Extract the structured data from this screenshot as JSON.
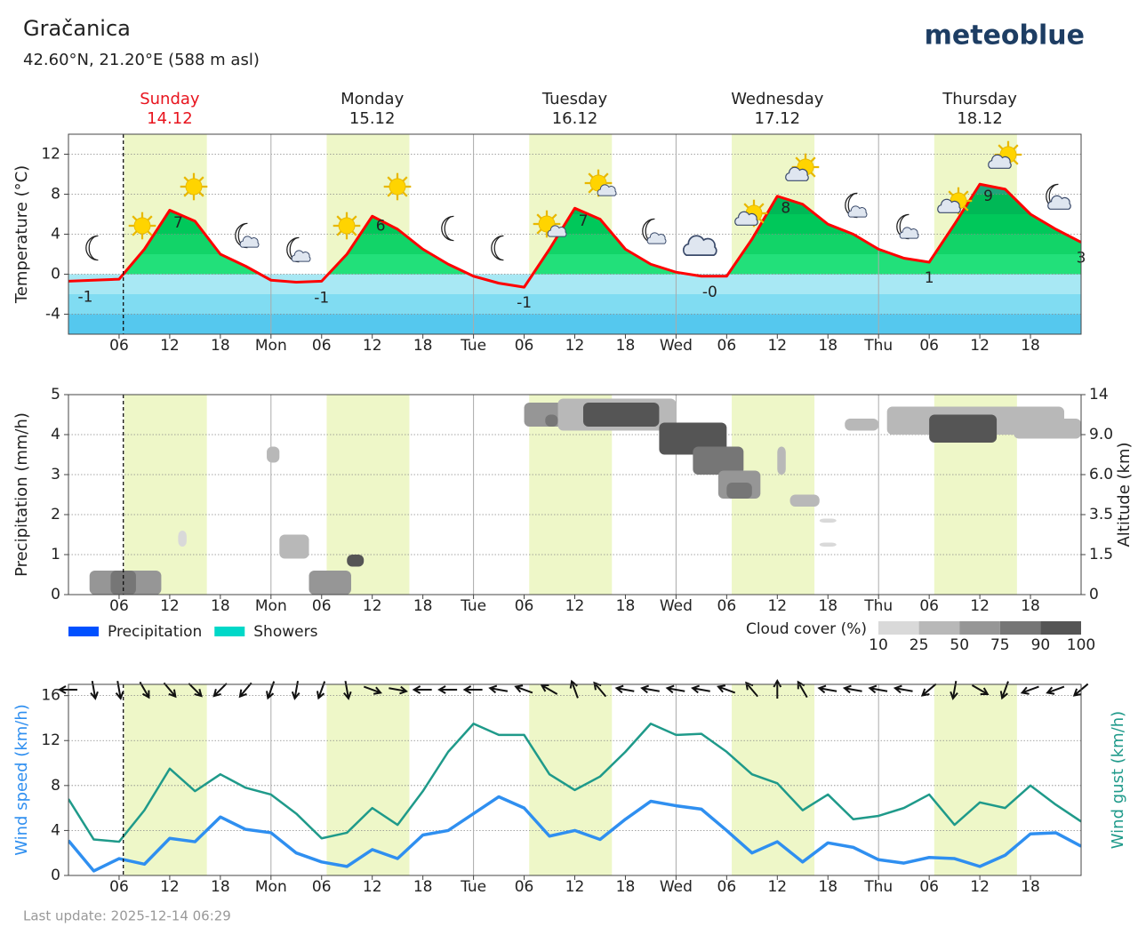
{
  "title": "Gračanica",
  "subtitle": "42.60°N, 21.20°E (588 m asl)",
  "brand": "meteoblue",
  "footer": "Last update: 2025-12-14 06:29",
  "days": [
    {
      "name": "Sunday",
      "date": "14.12",
      "color": "#e8141e"
    },
    {
      "name": "Monday",
      "date": "15.12",
      "color": "#222222"
    },
    {
      "name": "Tuesday",
      "date": "16.12",
      "color": "#222222"
    },
    {
      "name": "Wednesday",
      "date": "17.12",
      "color": "#222222"
    },
    {
      "name": "Thursday",
      "date": "18.12",
      "color": "#222222"
    }
  ],
  "time": {
    "xlim": [
      0,
      120
    ],
    "xticks": [
      {
        "value": 6,
        "label": "06"
      },
      {
        "value": 12,
        "label": "12"
      },
      {
        "value": 18,
        "label": "18"
      },
      {
        "value": 24,
        "label": "Mon"
      },
      {
        "value": 30,
        "label": "06"
      },
      {
        "value": 36,
        "label": "12"
      },
      {
        "value": 42,
        "label": "18"
      },
      {
        "value": 48,
        "label": "Tue"
      },
      {
        "value": 54,
        "label": "06"
      },
      {
        "value": 60,
        "label": "12"
      },
      {
        "value": 66,
        "label": "18"
      },
      {
        "value": 72,
        "label": "Wed"
      },
      {
        "value": 78,
        "label": "06"
      },
      {
        "value": 84,
        "label": "12"
      },
      {
        "value": 90,
        "label": "18"
      },
      {
        "value": 96,
        "label": "Thu"
      },
      {
        "value": 102,
        "label": "06"
      },
      {
        "value": 108,
        "label": "12"
      },
      {
        "value": 114,
        "label": "18"
      }
    ],
    "now": 6.5,
    "daylight": [
      [
        6.6,
        16.4
      ],
      [
        30.6,
        40.4
      ],
      [
        54.6,
        64.4
      ],
      [
        78.6,
        88.4
      ],
      [
        102.6,
        112.4
      ]
    ],
    "daylight_color": "#eef7c8"
  },
  "chart_data": [
    {
      "type": "line",
      "ylabel": "Temperature (°C)",
      "ylim": [
        -6,
        14
      ],
      "yticks": [
        -4,
        0,
        4,
        8,
        12
      ],
      "grid": true,
      "x": [
        0,
        3,
        6,
        9,
        12,
        15,
        18,
        21,
        24,
        27,
        30,
        33,
        36,
        39,
        42,
        45,
        48,
        51,
        54,
        57,
        60,
        63,
        66,
        69,
        72,
        75,
        78,
        81,
        84,
        87,
        90,
        93,
        96,
        99,
        102,
        105,
        108,
        111,
        114,
        117,
        120
      ],
      "series": [
        {
          "color": "#ff0000",
          "values": [
            -0.7,
            -0.6,
            -0.5,
            2.5,
            6.4,
            5.3,
            2.0,
            0.8,
            -0.6,
            -0.8,
            -0.7,
            2.0,
            5.8,
            4.5,
            2.5,
            1.0,
            -0.2,
            -0.9,
            -1.3,
            2.5,
            6.6,
            5.5,
            2.5,
            1.0,
            0.2,
            -0.2,
            -0.2,
            3.5,
            7.8,
            7.0,
            5.0,
            4.0,
            2.5,
            1.6,
            1.2,
            5.0,
            9.0,
            8.5,
            6.0,
            4.5,
            3.2
          ]
        }
      ],
      "fill_above": [
        "#22e07a",
        "#12d468",
        "#00c85a",
        "#00b856",
        "#1ea57a",
        "#1ea57a"
      ],
      "fill_below": [
        "#a8e8f4",
        "#80dcf2",
        "#55c8ee"
      ],
      "annotations": [
        {
          "x": 2,
          "value": -0.7,
          "label": "-1"
        },
        {
          "x": 13,
          "value": 6.7,
          "label": "7"
        },
        {
          "x": 30,
          "value": -0.8,
          "label": "-1"
        },
        {
          "x": 37,
          "value": 6.4,
          "label": "6"
        },
        {
          "x": 54,
          "value": -1.3,
          "label": "-1"
        },
        {
          "x": 61,
          "value": 6.9,
          "label": "7"
        },
        {
          "x": 76,
          "value": -0.2,
          "label": "-0"
        },
        {
          "x": 85,
          "value": 8.2,
          "label": "8"
        },
        {
          "x": 102,
          "value": 1.2,
          "label": "1"
        },
        {
          "x": 109,
          "value": 9.4,
          "label": "9"
        },
        {
          "x": 120,
          "value": 3.2,
          "label": "3"
        }
      ]
    },
    {
      "type": "heatmap",
      "ylabel": "Precipitation (mm/h)",
      "y2label": "Altitude (km)",
      "ylim": [
        0,
        5
      ],
      "yticks": [
        0,
        1,
        2,
        3,
        4,
        5
      ],
      "y2ticks": [
        0,
        1.5,
        3.5,
        {
          "value": 6,
          "label": "6.0"
        },
        {
          "value": 9,
          "label": "9.0"
        },
        14
      ],
      "grid": true,
      "series": [
        {
          "name": "Precipitation",
          "color": "#0050ff"
        },
        {
          "name": "Showers",
          "color": "#00d8c8"
        }
      ],
      "cloud_legend": {
        "title": "Cloud cover (%)",
        "levels": [
          10,
          25,
          50,
          75,
          90,
          100
        ],
        "colors": [
          "#d9d9d9",
          "#b8b8b8",
          "#969696",
          "#767676",
          "#555555"
        ]
      },
      "cloud_cover": [
        {
          "x0": 2.5,
          "x1": 11,
          "y0": 0,
          "y1": 0.6,
          "cover": 60
        },
        {
          "x0": 5,
          "x1": 8,
          "y0": 0,
          "y1": 0.6,
          "cover": 85
        },
        {
          "x0": 13,
          "x1": 14,
          "y0": 1.2,
          "y1": 1.6,
          "cover": 20
        },
        {
          "x0": 23.5,
          "x1": 25,
          "y0": 3.3,
          "y1": 3.7,
          "cover": 30
        },
        {
          "x0": 25,
          "x1": 28.5,
          "y0": 0.9,
          "y1": 1.5,
          "cover": 25
        },
        {
          "x0": 28.5,
          "x1": 33.5,
          "y0": 0,
          "y1": 0.6,
          "cover": 55
        },
        {
          "x0": 33,
          "x1": 35,
          "y0": 0.7,
          "y1": 1.0,
          "cover": 95
        },
        {
          "x0": 54,
          "x1": 60,
          "y0": 4.2,
          "y1": 4.8,
          "cover": 50
        },
        {
          "x0": 56.5,
          "x1": 58,
          "y0": 4.2,
          "y1": 4.5,
          "cover": 85
        },
        {
          "x0": 58,
          "x1": 72,
          "y0": 4.1,
          "y1": 4.9,
          "cover": 40
        },
        {
          "x0": 61,
          "x1": 70,
          "y0": 4.2,
          "y1": 4.8,
          "cover": 90
        },
        {
          "x0": 70,
          "x1": 78,
          "y0": 3.5,
          "y1": 4.3,
          "cover": 90
        },
        {
          "x0": 74,
          "x1": 80,
          "y0": 3.0,
          "y1": 3.7,
          "cover": 85
        },
        {
          "x0": 77,
          "x1": 82,
          "y0": 2.4,
          "y1": 3.1,
          "cover": 60
        },
        {
          "x0": 78,
          "x1": 81,
          "y0": 2.4,
          "y1": 2.8,
          "cover": 85
        },
        {
          "x0": 84,
          "x1": 85,
          "y0": 3.0,
          "y1": 3.7,
          "cover": 45
        },
        {
          "x0": 85.5,
          "x1": 89,
          "y0": 2.2,
          "y1": 2.5,
          "cover": 25
        },
        {
          "x0": 89,
          "x1": 91,
          "y0": 1.8,
          "y1": 1.9,
          "cover": 15
        },
        {
          "x0": 89,
          "x1": 91,
          "y0": 1.2,
          "y1": 1.3,
          "cover": 15
        },
        {
          "x0": 92,
          "x1": 96,
          "y0": 4.1,
          "y1": 4.4,
          "cover": 40
        },
        {
          "x0": 97,
          "x1": 118,
          "y0": 4.0,
          "y1": 4.7,
          "cover": 40
        },
        {
          "x0": 102,
          "x1": 110,
          "y0": 3.8,
          "y1": 4.5,
          "cover": 95
        },
        {
          "x0": 112,
          "x1": 120,
          "y0": 3.9,
          "y1": 4.4,
          "cover": 30
        }
      ]
    },
    {
      "type": "line",
      "ylabel": "Wind speed (km/h)",
      "y2label": "Wind gust (km/h)",
      "ylim": [
        0,
        17
      ],
      "yticks": [
        0,
        4,
        8,
        12,
        16
      ],
      "grid": true,
      "x": [
        0,
        3,
        6,
        9,
        12,
        15,
        18,
        21,
        24,
        27,
        30,
        33,
        36,
        39,
        42,
        45,
        48,
        51,
        54,
        57,
        60,
        63,
        66,
        69,
        72,
        75,
        78,
        81,
        84,
        87,
        90,
        93,
        96,
        99,
        102,
        105,
        108,
        111,
        114,
        117,
        120
      ],
      "series": [
        {
          "color": "#2f8ff0",
          "values": [
            3.1,
            0.4,
            1.5,
            1.0,
            3.3,
            3.0,
            5.2,
            4.1,
            3.8,
            2.0,
            1.2,
            0.8,
            2.3,
            1.5,
            3.6,
            4.0,
            5.5,
            7.0,
            6.0,
            3.5,
            4.0,
            3.2,
            5.0,
            6.6,
            6.2,
            5.9,
            4.0,
            2.0,
            3.0,
            1.2,
            2.9,
            2.5,
            1.4,
            1.1,
            1.6,
            1.5,
            0.8,
            1.8,
            3.7,
            3.8,
            2.6
          ]
        },
        {
          "color": "#1f9a8a",
          "axis": "y2",
          "values": [
            6.8,
            3.2,
            3.0,
            5.8,
            9.5,
            7.5,
            9.0,
            7.8,
            7.2,
            5.5,
            3.3,
            3.8,
            6.0,
            4.5,
            7.5,
            11.0,
            13.5,
            12.5,
            12.5,
            9.0,
            7.6,
            8.8,
            11.0,
            13.5,
            12.5,
            12.6,
            11.0,
            9.0,
            8.2,
            5.8,
            7.2,
            5.0,
            5.3,
            6.0,
            7.2,
            4.5,
            6.5,
            6.0,
            8.0,
            6.3,
            4.8
          ]
        }
      ],
      "wind_direction": [
        90,
        350,
        350,
        330,
        320,
        315,
        45,
        40,
        20,
        10,
        20,
        350,
        290,
        280,
        90,
        90,
        90,
        100,
        110,
        120,
        160,
        140,
        100,
        100,
        100,
        100,
        110,
        140,
        180,
        150,
        100,
        100,
        100,
        100,
        50,
        10,
        300,
        20,
        70,
        70,
        50
      ]
    }
  ]
}
